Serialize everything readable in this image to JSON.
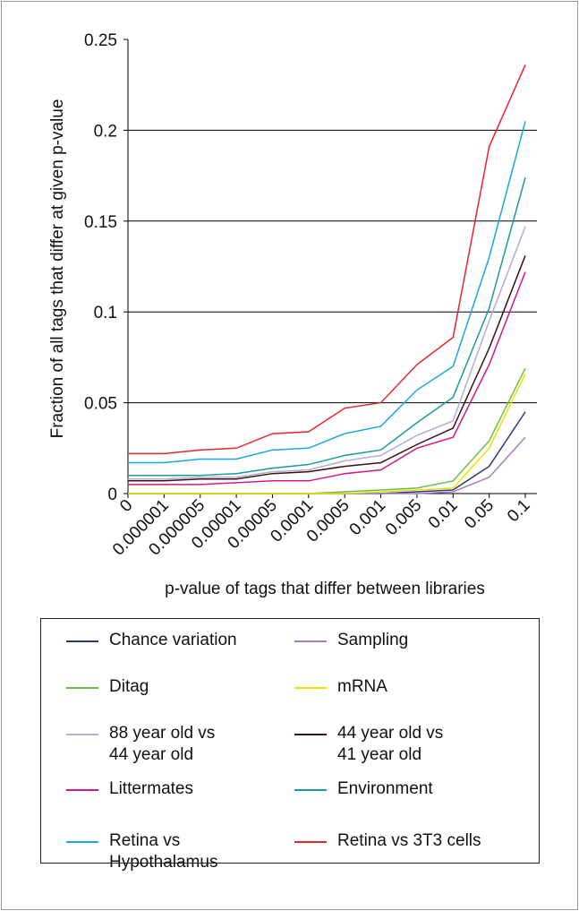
{
  "chart_data": {
    "type": "line",
    "x_label": "p-value of tags that differ between libraries",
    "y_label": "Fraction of all tags that differ at given p-value",
    "categories": [
      "0",
      "0.000001",
      "0.000005",
      "0.00001",
      "0.00005",
      "0.0001",
      "0.0005",
      "0.001",
      "0.005",
      "0.01",
      "0.05",
      "0.1"
    ],
    "ylim": [
      0,
      0.25
    ],
    "yticks": [
      0,
      0.05,
      0.1,
      0.15,
      0.2,
      0.25
    ],
    "grid": true,
    "series": [
      {
        "name": "Chance variation",
        "color": "#2a3a7a",
        "values": [
          0,
          0,
          0,
          0,
          0,
          0,
          0,
          0,
          0.001,
          0.002,
          0.015,
          0.045
        ]
      },
      {
        "name": "Sampling",
        "color": "#a77cc4",
        "values": [
          0,
          0,
          0,
          0,
          0,
          0,
          0,
          0,
          0,
          0.001,
          0.009,
          0.031
        ]
      },
      {
        "name": "Ditag",
        "color": "#6abf4b",
        "values": [
          0,
          0,
          0,
          0,
          0,
          0,
          0.001,
          0.002,
          0.003,
          0.007,
          0.029,
          0.069
        ]
      },
      {
        "name": "mRNA",
        "color": "#efdf00",
        "values": [
          0,
          0,
          0,
          0,
          0,
          0,
          0,
          0.001,
          0.002,
          0.003,
          0.025,
          0.066
        ]
      },
      {
        "name": "88 year old vs\n44 year old",
        "color": "#b4acd4",
        "values": [
          0.008,
          0.008,
          0.009,
          0.009,
          0.012,
          0.013,
          0.018,
          0.021,
          0.032,
          0.04,
          0.095,
          0.147
        ]
      },
      {
        "name": "44 year old vs\n41 year old",
        "color": "#3a1010",
        "values": [
          0.007,
          0.007,
          0.008,
          0.008,
          0.011,
          0.012,
          0.015,
          0.017,
          0.027,
          0.036,
          0.08,
          0.131
        ]
      },
      {
        "name": "Littermates",
        "color": "#d0198a",
        "values": [
          0.005,
          0.005,
          0.005,
          0.006,
          0.007,
          0.007,
          0.011,
          0.013,
          0.025,
          0.031,
          0.071,
          0.122
        ]
      },
      {
        "name": "Environment",
        "color": "#1a9a9a",
        "values": [
          0.01,
          0.01,
          0.01,
          0.011,
          0.014,
          0.016,
          0.021,
          0.024,
          0.039,
          0.053,
          0.102,
          0.174
        ]
      },
      {
        "name": "Retina vs\nHypothalamus",
        "color": "#1aa7e0",
        "values": [
          0.017,
          0.017,
          0.019,
          0.019,
          0.024,
          0.025,
          0.033,
          0.037,
          0.057,
          0.07,
          0.13,
          0.205
        ]
      },
      {
        "name": "Retina vs 3T3 cells",
        "color": "#e8242b",
        "values": [
          0.022,
          0.022,
          0.024,
          0.025,
          0.033,
          0.034,
          0.047,
          0.05,
          0.071,
          0.086,
          0.191,
          0.236
        ]
      }
    ]
  }
}
